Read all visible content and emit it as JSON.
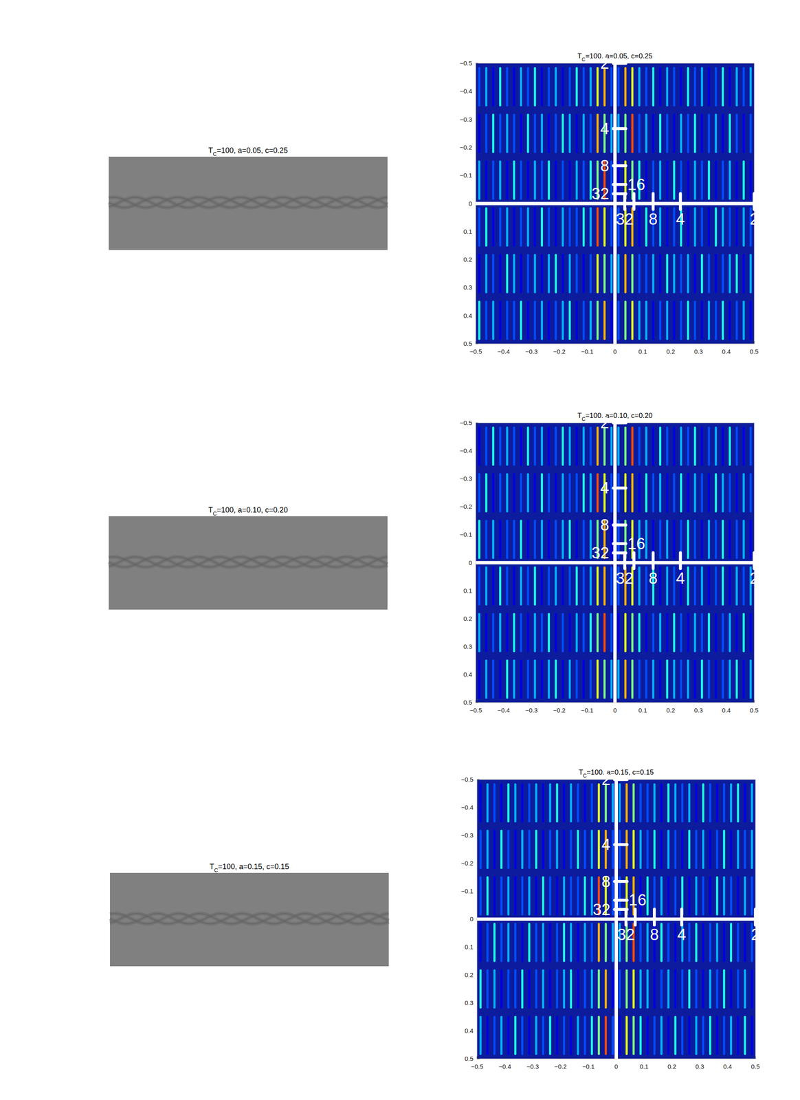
{
  "chart_data": [
    {
      "type": "image",
      "title": "TC=100, a=0.05, c=0.25"
    },
    {
      "type": "heatmap",
      "title": "TC=100, a=0.05, c=0.25",
      "xlim": [
        -0.5,
        0.5
      ],
      "ylim": [
        -0.5,
        0.5
      ],
      "xticks": [
        {
          "value": -0.5,
          "label": "−0.5"
        },
        {
          "value": -0.4,
          "label": "−0.4"
        },
        {
          "value": -0.3,
          "label": "−0.3"
        },
        {
          "value": -0.2,
          "label": "−0.2"
        },
        {
          "value": -0.1,
          "label": "−0.1"
        },
        0,
        0.1,
        0.2,
        0.3,
        0.4,
        0.5
      ],
      "yticks": [
        {
          "value": -0.5,
          "label": "−0.5"
        },
        {
          "value": -0.4,
          "label": "−0.4"
        },
        {
          "value": -0.3,
          "label": "−0.3"
        },
        {
          "value": -0.2,
          "label": "−0.2"
        },
        {
          "value": -0.1,
          "label": "−0.1"
        },
        0,
        0.1,
        0.2,
        0.3,
        0.4,
        0.5
      ],
      "origin": [
        0,
        0
      ],
      "x_marks": [
        {
          "value": 0.5,
          "label": "2"
        },
        {
          "value": 0.235,
          "label": "4"
        },
        {
          "value": 0.137,
          "label": "8"
        },
        {
          "value": 0.035,
          "label": "32"
        },
        {
          "value": 0.068,
          "label": null
        }
      ],
      "y_marks": [
        {
          "value": -0.5,
          "label": "2"
        },
        {
          "value": -0.267,
          "label": "4"
        },
        {
          "value": -0.135,
          "label": "8"
        },
        {
          "value": -0.035,
          "label": "32"
        },
        {
          "value": -0.068,
          "label": "16"
        }
      ],
      "cells": [
        [
          0.2,
          0.3,
          0.1,
          0.4,
          0.2,
          0.1,
          0.3,
          0.2,
          0.4,
          0.1,
          0.2,
          0.3,
          0.1,
          0.2,
          0.4,
          0.2,
          0.3,
          0.6,
          0.7,
          0.2,
          0.2,
          0.7,
          0.6,
          0.3,
          0.2,
          0.4,
          0.1,
          0.3,
          0.2,
          0.1,
          0.4,
          0.2,
          0.3,
          0.1,
          0.2,
          0.4,
          0.1,
          0.3,
          0.2,
          0.3
        ],
        [
          0.1,
          0.2,
          0.4,
          0.2,
          0.3,
          0.2,
          0.1,
          0.4,
          0.2,
          0.3,
          0.1,
          0.2,
          0.4,
          0.3,
          0.1,
          0.3,
          0.2,
          0.7,
          0.5,
          0.3,
          0.3,
          0.5,
          0.8,
          0.2,
          0.3,
          0.1,
          0.4,
          0.2,
          0.1,
          0.3,
          0.2,
          0.4,
          0.1,
          0.2,
          0.3,
          0.1,
          0.4,
          0.2,
          0.1,
          0.2
        ],
        [
          0.3,
          0.1,
          0.2,
          0.3,
          0.1,
          0.4,
          0.2,
          0.1,
          0.3,
          0.2,
          0.4,
          0.1,
          0.2,
          0.1,
          0.3,
          0.2,
          0.4,
          0.5,
          0.8,
          0.2,
          0.1,
          0.6,
          0.5,
          0.4,
          0.1,
          0.2,
          0.3,
          0.1,
          0.4,
          0.2,
          0.1,
          0.3,
          0.2,
          0.4,
          0.1,
          0.2,
          0.3,
          0.1,
          0.4,
          0.1
        ],
        [
          0.2,
          0.4,
          0.1,
          0.2,
          0.3,
          0.1,
          0.2,
          0.3,
          0.1,
          0.4,
          0.2,
          0.1,
          0.3,
          0.2,
          0.2,
          0.4,
          0.3,
          0.8,
          0.6,
          0.2,
          0.2,
          0.6,
          0.7,
          0.1,
          0.4,
          0.2,
          0.3,
          0.1,
          0.2,
          0.4,
          0.1,
          0.3,
          0.2,
          0.1,
          0.4,
          0.3,
          0.2,
          0.1,
          0.3,
          0.2
        ],
        [
          0.1,
          0.3,
          0.2,
          0.1,
          0.4,
          0.3,
          0.1,
          0.2,
          0.3,
          0.1,
          0.3,
          0.4,
          0.1,
          0.3,
          0.2,
          0.1,
          0.2,
          0.6,
          0.5,
          0.3,
          0.3,
          0.7,
          0.5,
          0.2,
          0.2,
          0.3,
          0.1,
          0.4,
          0.3,
          0.2,
          0.3,
          0.1,
          0.4,
          0.2,
          0.1,
          0.2,
          0.3,
          0.4,
          0.1,
          0.3
        ],
        [
          0.4,
          0.2,
          0.3,
          0.1,
          0.2,
          0.2,
          0.4,
          0.1,
          0.2,
          0.3,
          0.1,
          0.2,
          0.3,
          0.4,
          0.1,
          0.2,
          0.3,
          0.5,
          0.7,
          0.1,
          0.2,
          0.5,
          0.6,
          0.3,
          0.3,
          0.1,
          0.2,
          0.3,
          0.1,
          0.2,
          0.4,
          0.2,
          0.1,
          0.3,
          0.2,
          0.4,
          0.1,
          0.2,
          0.3,
          0.1
        ]
      ]
    },
    {
      "type": "image",
      "title": "TC=100, a=0.10, c=0.20"
    },
    {
      "type": "heatmap",
      "title": "TC=100, a=0.10, c=0.20",
      "xlim": [
        -0.5,
        0.5
      ],
      "ylim": [
        -0.5,
        0.5
      ],
      "xticks": [
        {
          "value": -0.5,
          "label": "−0.5"
        },
        {
          "value": -0.4,
          "label": "−0.4"
        },
        {
          "value": -0.3,
          "label": "−0.3"
        },
        {
          "value": -0.2,
          "label": "−0.2"
        },
        {
          "value": -0.1,
          "label": "−0.1"
        },
        0,
        0.1,
        0.2,
        0.3,
        0.4,
        0.5
      ],
      "yticks": [
        {
          "value": -0.5,
          "label": "−0.5"
        },
        {
          "value": -0.4,
          "label": "−0.4"
        },
        {
          "value": -0.3,
          "label": "−0.3"
        },
        {
          "value": -0.2,
          "label": "−0.2"
        },
        {
          "value": -0.1,
          "label": "−0.1"
        },
        0,
        0.1,
        0.2,
        0.3,
        0.4,
        0.5
      ],
      "origin": [
        0,
        0
      ],
      "x_marks": [
        {
          "value": 0.5,
          "label": "2"
        },
        {
          "value": 0.235,
          "label": "4"
        },
        {
          "value": 0.137,
          "label": "8"
        },
        {
          "value": 0.035,
          "label": "32"
        },
        {
          "value": 0.068,
          "label": null
        }
      ],
      "y_marks": [
        {
          "value": -0.5,
          "label": "2"
        },
        {
          "value": -0.267,
          "label": "4"
        },
        {
          "value": -0.135,
          "label": "8"
        },
        {
          "value": -0.035,
          "label": "32"
        },
        {
          "value": -0.068,
          "label": "16"
        }
      ],
      "cells": [
        [
          0.1,
          0.2,
          0.4,
          0.2,
          0.3,
          0.2,
          0.1,
          0.4,
          0.2,
          0.3,
          0.1,
          0.2,
          0.4,
          0.3,
          0.1,
          0.3,
          0.2,
          0.7,
          0.5,
          0.3,
          0.3,
          0.5,
          0.8,
          0.2,
          0.3,
          0.1,
          0.4,
          0.2,
          0.1,
          0.3,
          0.2,
          0.4,
          0.1,
          0.2,
          0.3,
          0.1,
          0.4,
          0.2,
          0.1,
          0.2
        ],
        [
          0.2,
          0.4,
          0.1,
          0.2,
          0.3,
          0.1,
          0.2,
          0.3,
          0.1,
          0.4,
          0.2,
          0.1,
          0.3,
          0.2,
          0.2,
          0.4,
          0.3,
          0.8,
          0.6,
          0.2,
          0.2,
          0.6,
          0.7,
          0.1,
          0.4,
          0.2,
          0.3,
          0.1,
          0.2,
          0.4,
          0.1,
          0.3,
          0.2,
          0.1,
          0.4,
          0.3,
          0.2,
          0.1,
          0.3,
          0.2
        ],
        [
          0.4,
          0.2,
          0.3,
          0.1,
          0.2,
          0.2,
          0.4,
          0.1,
          0.2,
          0.3,
          0.1,
          0.2,
          0.3,
          0.4,
          0.1,
          0.2,
          0.3,
          0.5,
          0.7,
          0.1,
          0.2,
          0.5,
          0.6,
          0.3,
          0.3,
          0.1,
          0.2,
          0.3,
          0.1,
          0.2,
          0.4,
          0.2,
          0.1,
          0.3,
          0.2,
          0.4,
          0.1,
          0.2,
          0.3,
          0.1
        ],
        [
          0.2,
          0.3,
          0.1,
          0.4,
          0.2,
          0.1,
          0.3,
          0.2,
          0.4,
          0.1,
          0.2,
          0.3,
          0.1,
          0.2,
          0.4,
          0.2,
          0.3,
          0.6,
          0.7,
          0.2,
          0.2,
          0.7,
          0.6,
          0.3,
          0.2,
          0.4,
          0.1,
          0.3,
          0.2,
          0.1,
          0.4,
          0.2,
          0.3,
          0.1,
          0.2,
          0.4,
          0.1,
          0.3,
          0.2,
          0.3
        ],
        [
          0.3,
          0.1,
          0.2,
          0.3,
          0.1,
          0.4,
          0.2,
          0.1,
          0.3,
          0.2,
          0.4,
          0.1,
          0.2,
          0.1,
          0.3,
          0.2,
          0.4,
          0.5,
          0.8,
          0.2,
          0.1,
          0.6,
          0.5,
          0.4,
          0.1,
          0.2,
          0.3,
          0.1,
          0.4,
          0.2,
          0.1,
          0.3,
          0.2,
          0.4,
          0.1,
          0.2,
          0.3,
          0.1,
          0.4,
          0.1
        ],
        [
          0.1,
          0.3,
          0.2,
          0.1,
          0.4,
          0.3,
          0.1,
          0.2,
          0.3,
          0.1,
          0.3,
          0.4,
          0.1,
          0.3,
          0.2,
          0.1,
          0.2,
          0.6,
          0.5,
          0.3,
          0.3,
          0.7,
          0.5,
          0.2,
          0.2,
          0.3,
          0.1,
          0.4,
          0.3,
          0.2,
          0.3,
          0.1,
          0.4,
          0.2,
          0.1,
          0.2,
          0.3,
          0.4,
          0.1,
          0.3
        ]
      ]
    },
    {
      "type": "image",
      "title": "TC=100, a=0.15, c=0.15"
    },
    {
      "type": "heatmap",
      "title": "TC=100, a=0.15, c=0.15",
      "xlim": [
        -0.5,
        0.5
      ],
      "ylim": [
        -0.5,
        0.5
      ],
      "xticks": [
        {
          "value": -0.5,
          "label": "−0.5"
        },
        {
          "value": -0.4,
          "label": "−0.4"
        },
        {
          "value": -0.3,
          "label": "−0.3"
        },
        {
          "value": -0.2,
          "label": "−0.2"
        },
        {
          "value": -0.1,
          "label": "−0.1"
        },
        0,
        0.1,
        0.2,
        0.3,
        0.4,
        0.5
      ],
      "yticks": [
        {
          "value": -0.5,
          "label": "−0.5"
        },
        {
          "value": -0.4,
          "label": "−0.4"
        },
        {
          "value": -0.3,
          "label": "−0.3"
        },
        {
          "value": -0.2,
          "label": "−0.2"
        },
        {
          "value": -0.1,
          "label": "−0.1"
        },
        0,
        0.1,
        0.2,
        0.3,
        0.4,
        0.5
      ],
      "origin": [
        0,
        0
      ],
      "x_marks": [
        {
          "value": 0.5,
          "label": "2"
        },
        {
          "value": 0.235,
          "label": "4"
        },
        {
          "value": 0.137,
          "label": "8"
        },
        {
          "value": 0.035,
          "label": "32"
        },
        {
          "value": 0.068,
          "label": null
        }
      ],
      "y_marks": [
        {
          "value": -0.5,
          "label": "2"
        },
        {
          "value": -0.267,
          "label": "4"
        },
        {
          "value": -0.135,
          "label": "8"
        },
        {
          "value": -0.035,
          "label": "32"
        },
        {
          "value": -0.068,
          "label": "16"
        }
      ],
      "cells": [
        [
          0.1,
          0.3,
          0.2,
          0.1,
          0.4,
          0.3,
          0.1,
          0.2,
          0.3,
          0.1,
          0.3,
          0.4,
          0.1,
          0.3,
          0.2,
          0.1,
          0.2,
          0.6,
          0.5,
          0.3,
          0.3,
          0.7,
          0.5,
          0.2,
          0.2,
          0.3,
          0.1,
          0.4,
          0.3,
          0.2,
          0.3,
          0.1,
          0.4,
          0.2,
          0.1,
          0.2,
          0.3,
          0.4,
          0.1,
          0.3
        ],
        [
          0.2,
          0.3,
          0.1,
          0.4,
          0.2,
          0.1,
          0.3,
          0.2,
          0.4,
          0.1,
          0.2,
          0.3,
          0.1,
          0.2,
          0.4,
          0.2,
          0.3,
          0.6,
          0.7,
          0.2,
          0.2,
          0.7,
          0.6,
          0.3,
          0.2,
          0.4,
          0.1,
          0.3,
          0.2,
          0.1,
          0.4,
          0.2,
          0.3,
          0.1,
          0.2,
          0.4,
          0.1,
          0.3,
          0.2,
          0.3
        ],
        [
          0.2,
          0.4,
          0.1,
          0.2,
          0.3,
          0.1,
          0.2,
          0.3,
          0.1,
          0.4,
          0.2,
          0.1,
          0.3,
          0.2,
          0.2,
          0.4,
          0.3,
          0.8,
          0.6,
          0.2,
          0.2,
          0.6,
          0.7,
          0.1,
          0.4,
          0.2,
          0.3,
          0.1,
          0.2,
          0.4,
          0.1,
          0.3,
          0.2,
          0.1,
          0.4,
          0.3,
          0.2,
          0.1,
          0.3,
          0.2
        ],
        [
          0.1,
          0.2,
          0.4,
          0.2,
          0.3,
          0.2,
          0.1,
          0.4,
          0.2,
          0.3,
          0.1,
          0.2,
          0.4,
          0.3,
          0.1,
          0.3,
          0.2,
          0.7,
          0.5,
          0.3,
          0.3,
          0.5,
          0.8,
          0.2,
          0.3,
          0.1,
          0.4,
          0.2,
          0.1,
          0.3,
          0.2,
          0.4,
          0.1,
          0.2,
          0.3,
          0.1,
          0.4,
          0.2,
          0.1,
          0.2
        ],
        [
          0.4,
          0.2,
          0.3,
          0.1,
          0.2,
          0.2,
          0.4,
          0.1,
          0.2,
          0.3,
          0.1,
          0.2,
          0.3,
          0.4,
          0.1,
          0.2,
          0.3,
          0.5,
          0.7,
          0.1,
          0.2,
          0.5,
          0.6,
          0.3,
          0.3,
          0.1,
          0.2,
          0.3,
          0.1,
          0.2,
          0.4,
          0.2,
          0.1,
          0.3,
          0.2,
          0.4,
          0.1,
          0.2,
          0.3,
          0.1
        ],
        [
          0.3,
          0.1,
          0.2,
          0.3,
          0.1,
          0.4,
          0.2,
          0.1,
          0.3,
          0.2,
          0.4,
          0.1,
          0.2,
          0.1,
          0.3,
          0.2,
          0.4,
          0.5,
          0.8,
          0.2,
          0.1,
          0.6,
          0.5,
          0.4,
          0.1,
          0.2,
          0.3,
          0.1,
          0.4,
          0.2,
          0.1,
          0.3,
          0.2,
          0.4,
          0.1,
          0.2,
          0.3,
          0.1,
          0.4,
          0.1
        ]
      ]
    }
  ]
}
